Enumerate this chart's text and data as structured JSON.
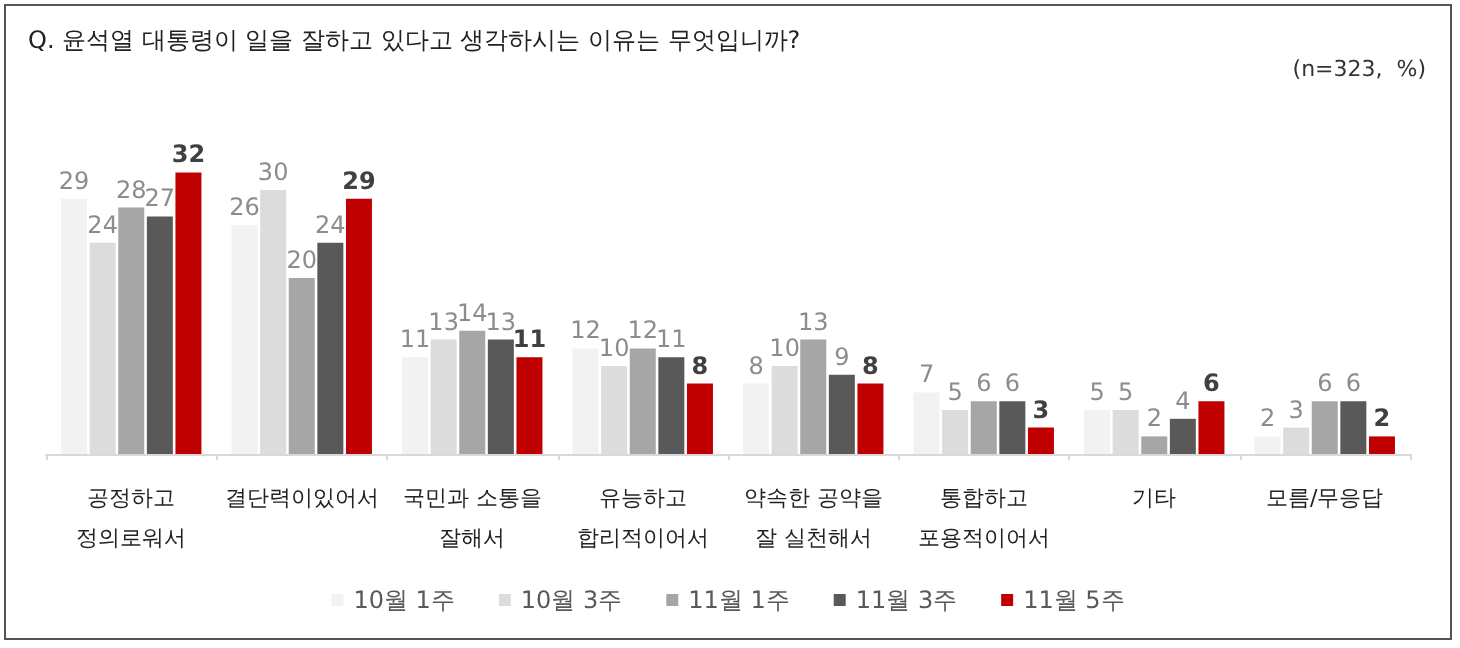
{
  "chart_data": {
    "type": "bar",
    "title": "Q. 윤석열 대통령이 일을 잘하고 있다고 생각하시는 이유는 무엇입니까?",
    "annotations": [
      "(n=323,  %)"
    ],
    "categories": [
      "공정하고\n정의로워서",
      "결단력이있어서",
      "국민과 소통을\n잘해서",
      "유능하고\n합리적이어서",
      "약속한 공약을\n잘 실천해서",
      "통합하고\n포용적이어서",
      "기타",
      "모름/무응답"
    ],
    "series": [
      {
        "name": "10월 1주",
        "color": "#f2f2f2",
        "values": [
          29,
          26,
          11,
          12,
          8,
          7,
          5,
          2
        ]
      },
      {
        "name": "10월 3주",
        "color": "#dcdcdc",
        "values": [
          24,
          30,
          13,
          10,
          10,
          5,
          5,
          3
        ]
      },
      {
        "name": "11월 1주",
        "color": "#a6a6a6",
        "values": [
          28,
          20,
          14,
          12,
          13,
          6,
          2,
          6
        ]
      },
      {
        "name": "11월 3주",
        "color": "#595959",
        "values": [
          27,
          24,
          13,
          11,
          9,
          6,
          4,
          6
        ]
      },
      {
        "name": "11월 5주",
        "color": "#c00000",
        "values": [
          32,
          29,
          11,
          8,
          8,
          3,
          6,
          2
        ]
      }
    ],
    "data_labels": true,
    "legend": "bottom"
  }
}
